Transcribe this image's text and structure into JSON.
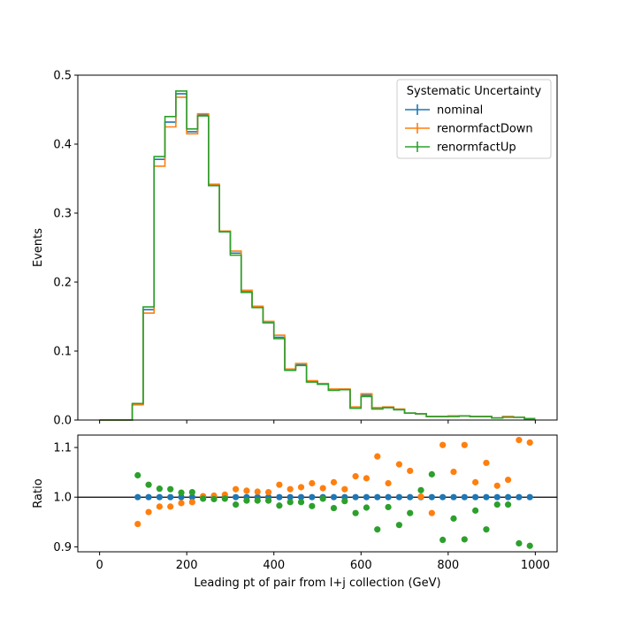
{
  "chart_data": [
    {
      "type": "line",
      "drawstyle": "steps",
      "ylabel": "Events",
      "xlim": [
        -50,
        1050
      ],
      "ylim": [
        0,
        0.5
      ],
      "yticks": [
        "0.0",
        "0.1",
        "0.2",
        "0.3",
        "0.4",
        "0.5"
      ],
      "legend": {
        "title": "Systematic Uncertainty",
        "placement": "top-right"
      },
      "bin_edges": [
        0,
        25,
        50,
        75,
        100,
        125,
        150,
        175,
        200,
        225,
        250,
        275,
        300,
        325,
        350,
        375,
        400,
        425,
        450,
        475,
        500,
        525,
        550,
        575,
        600,
        625,
        650,
        675,
        700,
        725,
        750,
        775,
        800,
        825,
        850,
        875,
        900,
        925,
        950,
        975,
        1000
      ],
      "series": [
        {
          "name": "nominal",
          "color": "#1f77b4",
          "values": [
            0,
            0,
            0,
            0.023,
            0.16,
            0.378,
            0.432,
            0.473,
            0.418,
            0.442,
            0.34,
            0.273,
            0.242,
            0.186,
            0.164,
            0.142,
            0.12,
            0.073,
            0.08,
            0.056,
            0.052,
            0.044,
            0.044,
            0.018,
            0.036,
            0.017,
            0.018,
            0.015,
            0.01,
            0.009,
            0.005,
            0.005,
            0.006,
            0.006,
            0.005,
            0.005,
            0.003,
            0.005,
            0.004,
            0.002
          ]
        },
        {
          "name": "renormfactDown",
          "color": "#ff7f0e",
          "values": [
            0,
            0,
            0,
            0.022,
            0.155,
            0.368,
            0.425,
            0.468,
            0.415,
            0.444,
            0.342,
            0.274,
            0.245,
            0.188,
            0.165,
            0.143,
            0.123,
            0.074,
            0.082,
            0.057,
            0.053,
            0.045,
            0.045,
            0.019,
            0.038,
            0.018,
            0.019,
            0.016,
            0.01,
            0.009,
            0.005,
            0.005,
            0.006,
            0.006,
            0.005,
            0.005,
            0.003,
            0.005,
            0.004,
            0.002
          ]
        },
        {
          "name": "renormfactUp",
          "color": "#2ca02c",
          "values": [
            0,
            0,
            0,
            0.024,
            0.164,
            0.382,
            0.44,
            0.477,
            0.422,
            0.441,
            0.34,
            0.273,
            0.239,
            0.185,
            0.163,
            0.141,
            0.118,
            0.072,
            0.079,
            0.055,
            0.052,
            0.043,
            0.044,
            0.017,
            0.034,
            0.016,
            0.018,
            0.015,
            0.01,
            0.009,
            0.005,
            0.005,
            0.005,
            0.006,
            0.005,
            0.005,
            0.003,
            0.004,
            0.004,
            0.002
          ]
        }
      ]
    },
    {
      "type": "scatter",
      "xlabel": "Leading pt of pair from l+j collection (GeV)",
      "ylabel": "Ratio",
      "xlim": [
        -50,
        1050
      ],
      "ylim": [
        0.89,
        1.125
      ],
      "xticks": [
        "0",
        "200",
        "400",
        "600",
        "800",
        "1000"
      ],
      "yticks": [
        "0.9",
        "1.0",
        "1.1"
      ],
      "reference_line": 1.0,
      "x": [
        87.5,
        112.5,
        137.5,
        162.5,
        187.5,
        212.5,
        237.5,
        262.5,
        287.5,
        312.5,
        337.5,
        362.5,
        387.5,
        412.5,
        437.5,
        462.5,
        487.5,
        512.5,
        537.5,
        562.5,
        587.5,
        612.5,
        637.5,
        662.5,
        687.5,
        712.5,
        737.5,
        762.5,
        787.5,
        812.5,
        837.5,
        862.5,
        887.5,
        912.5,
        937.5,
        962.5,
        987.5
      ],
      "series": [
        {
          "name": "nominal",
          "color": "#1f77b4",
          "values": [
            1,
            1,
            1,
            1,
            1,
            1,
            1,
            1,
            1,
            1,
            1,
            1,
            1,
            1,
            1,
            1,
            1,
            1,
            1,
            1,
            1,
            1,
            1,
            1,
            1,
            1,
            1,
            1,
            1,
            1,
            1,
            1,
            1,
            1,
            1,
            1,
            1
          ]
        },
        {
          "name": "renormfactDown",
          "color": "#ff7f0e",
          "values": [
            0.946,
            0.97,
            0.981,
            0.981,
            0.988,
            0.99,
            1.002,
            1.003,
            1.005,
            1.016,
            1.013,
            1.011,
            1.01,
            1.025,
            1.016,
            1.02,
            1.028,
            1.018,
            1.03,
            1.016,
            1.042,
            1.038,
            1.082,
            1.028,
            1.066,
            1.053,
            1.001,
            0.968,
            1.105,
            1.051,
            1.105,
            1.03,
            1.069,
            1.023,
            1.035,
            1.115,
            1.11
          ]
        },
        {
          "name": "renormfactUp",
          "color": "#2ca02c",
          "values": [
            1.044,
            1.025,
            1.017,
            1.016,
            1.009,
            1.01,
            0.997,
            0.996,
            0.997,
            0.985,
            0.993,
            0.993,
            0.993,
            0.983,
            0.99,
            0.99,
            0.982,
            0.997,
            0.978,
            0.992,
            0.968,
            0.979,
            0.935,
            0.98,
            0.944,
            0.968,
            1.014,
            1.046,
            0.914,
            0.957,
            0.915,
            0.973,
            0.935,
            0.985,
            0.985,
            0.907,
            0.902
          ]
        }
      ]
    }
  ]
}
